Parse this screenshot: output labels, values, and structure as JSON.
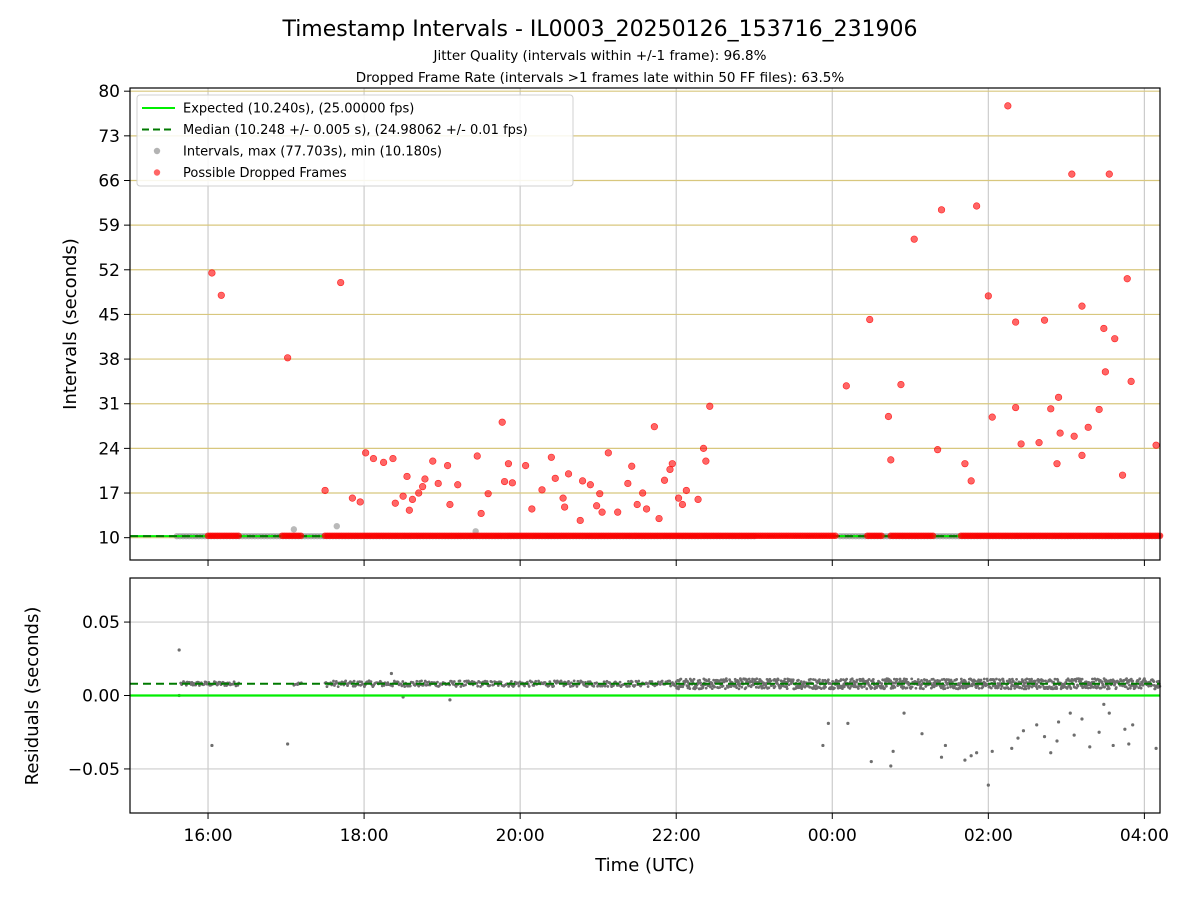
{
  "chart_data": [
    {
      "type": "scatter",
      "title": "Timestamp Intervals - IL0003_20250126_153716_231906",
      "subtitle_lines": [
        "Jitter Quality (intervals within +/-1 frame): 96.8%",
        "Dropped Frame Rate (intervals >1 frames late within 50 FF files): 63.5%"
      ],
      "xlabel": "",
      "ylabel": "Intervals (seconds)",
      "x_unit": "hours since 00:00 UTC (start day = -1)",
      "xlim": [
        -9.0,
        4.2
      ],
      "ylim": [
        6.5,
        80.5
      ],
      "yticks": [
        10,
        17,
        24,
        31,
        38,
        45,
        52,
        59,
        66,
        73,
        80
      ],
      "xticks": [
        -8,
        -6,
        -4,
        -2,
        0,
        2,
        4
      ],
      "xtick_labels": [
        "16:00",
        "18:00",
        "20:00",
        "22:00",
        "00:00",
        "02:00",
        "04:00"
      ],
      "grid": "both (vertical grey, horizontal gold)",
      "legend_placement": "top-left",
      "legend": [
        {
          "label": "Expected (10.240s), (25.00000 fps)",
          "style": "solid",
          "color": "#00ee00"
        },
        {
          "label": "Median (10.248 +/- 0.005 s), (24.98062 +/- 0.01 fps)",
          "style": "dashed",
          "color": "#007a00"
        },
        {
          "label": "Intervals, max (77.703s), min (10.180s)",
          "style": "dot",
          "color": "#808080"
        },
        {
          "label": "Possible Dropped Frames",
          "style": "dot",
          "color": "#ff0000"
        }
      ],
      "expected": 10.24,
      "median": 10.248,
      "intervals_segments": [
        {
          "x_start": -8.4,
          "x_end": -1.0,
          "y": 10.24
        },
        {
          "x_start": 0.1,
          "x_end": 4.2,
          "y": 10.24
        }
      ],
      "intervals_outliers": [
        {
          "x": -6.9,
          "y": 11.3
        },
        {
          "x": -6.35,
          "y": 11.8
        },
        {
          "x": -4.57,
          "y": 11.0
        }
      ],
      "dropped_segments": [
        {
          "x_start": -8.0,
          "x_end": -7.6,
          "y": 10.3
        },
        {
          "x_start": -7.05,
          "x_end": -6.8,
          "y": 10.3
        },
        {
          "x_start": -6.5,
          "x_end": 0.05,
          "y": 10.3
        },
        {
          "x_start": 0.45,
          "x_end": 0.65,
          "y": 10.3
        },
        {
          "x_start": 0.75,
          "x_end": 1.3,
          "y": 10.3
        },
        {
          "x_start": 1.65,
          "x_end": 4.2,
          "y": 10.3
        }
      ],
      "dropped_points": [
        {
          "x": -7.95,
          "y": 51.5
        },
        {
          "x": -7.83,
          "y": 48.0
        },
        {
          "x": -6.98,
          "y": 38.2
        },
        {
          "x": -6.3,
          "y": 50.0
        },
        {
          "x": -6.5,
          "y": 17.4
        },
        {
          "x": -6.15,
          "y": 16.2
        },
        {
          "x": -6.05,
          "y": 15.6
        },
        {
          "x": -5.98,
          "y": 23.3
        },
        {
          "x": -5.88,
          "y": 22.4
        },
        {
          "x": -5.75,
          "y": 21.8
        },
        {
          "x": -5.63,
          "y": 22.4
        },
        {
          "x": -5.6,
          "y": 15.4
        },
        {
          "x": -5.5,
          "y": 16.5
        },
        {
          "x": -5.45,
          "y": 19.6
        },
        {
          "x": -5.42,
          "y": 14.3
        },
        {
          "x": -5.38,
          "y": 16.0
        },
        {
          "x": -5.3,
          "y": 17.0
        },
        {
          "x": -5.25,
          "y": 18.0
        },
        {
          "x": -5.22,
          "y": 19.2
        },
        {
          "x": -5.12,
          "y": 22.0
        },
        {
          "x": -5.05,
          "y": 18.5
        },
        {
          "x": -4.93,
          "y": 21.3
        },
        {
          "x": -4.9,
          "y": 15.2
        },
        {
          "x": -4.8,
          "y": 18.3
        },
        {
          "x": -4.55,
          "y": 22.8
        },
        {
          "x": -4.5,
          "y": 13.8
        },
        {
          "x": -4.41,
          "y": 16.9
        },
        {
          "x": -4.23,
          "y": 28.1
        },
        {
          "x": -4.2,
          "y": 18.8
        },
        {
          "x": -4.15,
          "y": 21.6
        },
        {
          "x": -4.1,
          "y": 18.6
        },
        {
          "x": -3.93,
          "y": 21.3
        },
        {
          "x": -3.85,
          "y": 14.5
        },
        {
          "x": -3.72,
          "y": 17.5
        },
        {
          "x": -3.6,
          "y": 22.6
        },
        {
          "x": -3.55,
          "y": 19.3
        },
        {
          "x": -3.45,
          "y": 16.2
        },
        {
          "x": -3.43,
          "y": 14.8
        },
        {
          "x": -3.38,
          "y": 20.0
        },
        {
          "x": -3.23,
          "y": 12.7
        },
        {
          "x": -3.2,
          "y": 18.9
        },
        {
          "x": -3.1,
          "y": 18.3
        },
        {
          "x": -3.02,
          "y": 15.0
        },
        {
          "x": -2.98,
          "y": 16.9
        },
        {
          "x": -2.95,
          "y": 14.0
        },
        {
          "x": -2.87,
          "y": 23.3
        },
        {
          "x": -2.75,
          "y": 14.0
        },
        {
          "x": -2.62,
          "y": 18.5
        },
        {
          "x": -2.57,
          "y": 21.2
        },
        {
          "x": -2.5,
          "y": 15.2
        },
        {
          "x": -2.43,
          "y": 17.0
        },
        {
          "x": -2.38,
          "y": 14.5
        },
        {
          "x": -2.28,
          "y": 27.4
        },
        {
          "x": -2.22,
          "y": 13.0
        },
        {
          "x": -2.15,
          "y": 19.0
        },
        {
          "x": -2.08,
          "y": 20.7
        },
        {
          "x": -2.05,
          "y": 21.6
        },
        {
          "x": -1.97,
          "y": 16.2
        },
        {
          "x": -1.92,
          "y": 15.2
        },
        {
          "x": -1.87,
          "y": 17.4
        },
        {
          "x": -1.72,
          "y": 16.0
        },
        {
          "x": -1.65,
          "y": 24.0
        },
        {
          "x": -1.62,
          "y": 22.0
        },
        {
          "x": -1.57,
          "y": 30.6
        },
        {
          "x": 0.18,
          "y": 33.8
        },
        {
          "x": 0.48,
          "y": 44.2
        },
        {
          "x": 0.72,
          "y": 29.0
        },
        {
          "x": 0.75,
          "y": 22.2
        },
        {
          "x": 0.88,
          "y": 34.0
        },
        {
          "x": 1.05,
          "y": 56.8
        },
        {
          "x": 1.35,
          "y": 23.8
        },
        {
          "x": 1.4,
          "y": 61.4
        },
        {
          "x": 1.7,
          "y": 21.6
        },
        {
          "x": 1.78,
          "y": 18.9
        },
        {
          "x": 1.85,
          "y": 62.0
        },
        {
          "x": 2.0,
          "y": 47.9
        },
        {
          "x": 2.05,
          "y": 28.9
        },
        {
          "x": 2.25,
          "y": 77.7
        },
        {
          "x": 2.35,
          "y": 30.4
        },
        {
          "x": 2.35,
          "y": 43.8
        },
        {
          "x": 2.42,
          "y": 24.7
        },
        {
          "x": 2.65,
          "y": 24.9
        },
        {
          "x": 2.72,
          "y": 44.1
        },
        {
          "x": 2.8,
          "y": 30.2
        },
        {
          "x": 2.88,
          "y": 21.6
        },
        {
          "x": 2.92,
          "y": 26.4
        },
        {
          "x": 2.9,
          "y": 32.0
        },
        {
          "x": 3.07,
          "y": 67.0
        },
        {
          "x": 3.1,
          "y": 25.9
        },
        {
          "x": 3.2,
          "y": 46.3
        },
        {
          "x": 3.2,
          "y": 22.9
        },
        {
          "x": 3.28,
          "y": 27.3
        },
        {
          "x": 3.42,
          "y": 30.1
        },
        {
          "x": 3.48,
          "y": 42.8
        },
        {
          "x": 3.5,
          "y": 36.0
        },
        {
          "x": 3.55,
          "y": 67.0
        },
        {
          "x": 3.62,
          "y": 41.2
        },
        {
          "x": 3.72,
          "y": 19.8
        },
        {
          "x": 3.78,
          "y": 50.6
        },
        {
          "x": 3.83,
          "y": 34.5
        },
        {
          "x": 4.15,
          "y": 24.5
        }
      ]
    },
    {
      "type": "scatter",
      "title": "",
      "xlabel": "Time (UTC)",
      "ylabel": "Residuals (seconds)",
      "x_unit": "hours since 00:00 UTC (start day = -1)",
      "xlim": [
        -9.0,
        4.2
      ],
      "ylim": [
        -0.08,
        0.08
      ],
      "yticks": [
        0.05,
        0.0,
        -0.05
      ],
      "ytick_labels": [
        "0.05",
        "0.00",
        "−0.05"
      ],
      "xticks": [
        -8,
        -6,
        -4,
        -2,
        0,
        2,
        4
      ],
      "xtick_labels": [
        "16:00",
        "18:00",
        "20:00",
        "22:00",
        "00:00",
        "02:00",
        "04:00"
      ],
      "grid": "both (grey)",
      "expected_line": 0.0,
      "median_line": 0.008,
      "band_segments": [
        {
          "x_start": -8.35,
          "x_end": -7.6,
          "y_center": 0.008,
          "spread": 0.003
        },
        {
          "x_start": -6.9,
          "x_end": -6.8,
          "y_center": 0.008,
          "spread": 0.002
        },
        {
          "x_start": -6.5,
          "x_end": -2.0,
          "y_center": 0.008,
          "spread": 0.004
        },
        {
          "x_start": -2.0,
          "x_end": 4.2,
          "y_center": 0.008,
          "spread": 0.007
        }
      ],
      "outliers": [
        {
          "x": -8.37,
          "y": 0.031
        },
        {
          "x": -8.37,
          "y": 0.0
        },
        {
          "x": -7.95,
          "y": -0.034
        },
        {
          "x": -6.98,
          "y": -0.033
        },
        {
          "x": -5.65,
          "y": 0.015
        },
        {
          "x": -5.5,
          "y": -0.001
        },
        {
          "x": -4.9,
          "y": -0.003
        },
        {
          "x": -0.12,
          "y": -0.034
        },
        {
          "x": -0.05,
          "y": -0.019
        },
        {
          "x": 0.2,
          "y": -0.019
        },
        {
          "x": 0.5,
          "y": -0.045
        },
        {
          "x": 0.75,
          "y": -0.048
        },
        {
          "x": 0.78,
          "y": -0.038
        },
        {
          "x": 0.92,
          "y": -0.012
        },
        {
          "x": 1.15,
          "y": -0.026
        },
        {
          "x": 1.4,
          "y": -0.042
        },
        {
          "x": 1.45,
          "y": -0.034
        },
        {
          "x": 1.7,
          "y": -0.044
        },
        {
          "x": 1.78,
          "y": -0.041
        },
        {
          "x": 1.85,
          "y": -0.039
        },
        {
          "x": 2.0,
          "y": -0.061
        },
        {
          "x": 2.05,
          "y": -0.038
        },
        {
          "x": 2.3,
          "y": -0.036
        },
        {
          "x": 2.38,
          "y": -0.029
        },
        {
          "x": 2.45,
          "y": -0.024
        },
        {
          "x": 2.62,
          "y": -0.02
        },
        {
          "x": 2.72,
          "y": -0.028
        },
        {
          "x": 2.8,
          "y": -0.039
        },
        {
          "x": 2.88,
          "y": -0.031
        },
        {
          "x": 2.9,
          "y": -0.018
        },
        {
          "x": 3.05,
          "y": -0.012
        },
        {
          "x": 3.1,
          "y": -0.027
        },
        {
          "x": 3.2,
          "y": -0.016
        },
        {
          "x": 3.3,
          "y": -0.035
        },
        {
          "x": 3.42,
          "y": -0.025
        },
        {
          "x": 3.48,
          "y": -0.006
        },
        {
          "x": 3.55,
          "y": -0.012
        },
        {
          "x": 3.6,
          "y": -0.034
        },
        {
          "x": 3.75,
          "y": -0.023
        },
        {
          "x": 3.8,
          "y": -0.033
        },
        {
          "x": 3.85,
          "y": -0.02
        },
        {
          "x": 4.15,
          "y": -0.036
        }
      ]
    }
  ]
}
